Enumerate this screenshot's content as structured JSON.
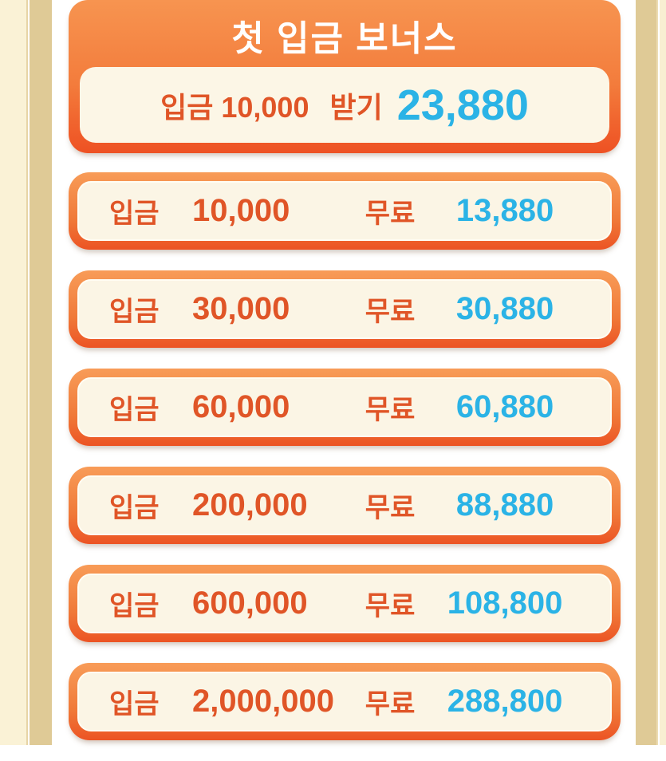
{
  "colors": {
    "accent_orange_text": "#e05527",
    "accent_cyan": "#2bb3e6",
    "card_border_light": "#f89c58",
    "card_border_dark": "#ec5424",
    "card_fill_cream": "#fbf5e5",
    "header_gradient_top": "#f79450",
    "header_gradient_bottom": "#ee5123",
    "side_tan": "#dfca96",
    "side_cream": "#faf2d6"
  },
  "header": {
    "title": "첫 입금 보너스"
  },
  "claim_card": {
    "deposit_label": "입금",
    "deposit_amount": "10,000",
    "action_label": "받기",
    "bonus_value": "23,880"
  },
  "rows": [
    {
      "deposit_label": "입금",
      "amount": "10,000",
      "free_label": "무료",
      "bonus": "13,880"
    },
    {
      "deposit_label": "입금",
      "amount": "30,000",
      "free_label": "무료",
      "bonus": "30,880"
    },
    {
      "deposit_label": "입금",
      "amount": "60,000",
      "free_label": "무료",
      "bonus": "60,880"
    },
    {
      "deposit_label": "입금",
      "amount": "200,000",
      "free_label": "무료",
      "bonus": "88,880"
    },
    {
      "deposit_label": "입금",
      "amount": "600,000",
      "free_label": "무료",
      "bonus": "108,800"
    },
    {
      "deposit_label": "입금",
      "amount": "2,000,000",
      "free_label": "무료",
      "bonus": "288,800"
    }
  ]
}
